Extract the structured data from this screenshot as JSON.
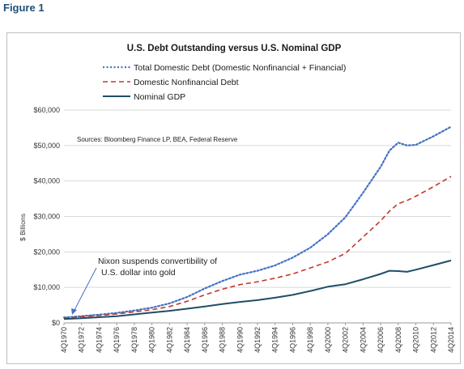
{
  "figure_label": "Figure 1",
  "chart_data": {
    "type": "line",
    "title": "U.S. Debt Outstanding versus U.S. Nominal GDP",
    "ylabel": "$ Billions",
    "xlabel": "",
    "ylim": [
      0,
      60000
    ],
    "yticks": [
      "$0",
      "$10,000",
      "$20,000",
      "$30,000",
      "$40,000",
      "$50,000",
      "$60,000"
    ],
    "x": [
      1970,
      1972,
      1974,
      1976,
      1978,
      1980,
      1982,
      1984,
      1986,
      1988,
      1990,
      1992,
      1994,
      1996,
      1998,
      2000,
      2002,
      2004,
      2006,
      2007,
      2008,
      2009,
      2010,
      2012,
      2014
    ],
    "xtick_labels": [
      "4Q1970",
      "4Q1972",
      "4Q1974",
      "4Q1976",
      "4Q1978",
      "4Q1980",
      "4Q1982",
      "4Q1984",
      "4Q1986",
      "4Q1988",
      "4Q1990",
      "4Q1992",
      "4Q1994",
      "4Q1996",
      "4Q1998",
      "4Q2000",
      "4Q2002",
      "4Q2004",
      "4Q2006",
      "4Q2008",
      "4Q2010",
      "4Q2012",
      "4Q2014"
    ],
    "series": [
      {
        "name": "Total Domestic  Debt (Domestic Nonfinancial + Financial)",
        "color": "#4472c4",
        "style": "dotted",
        "values": [
          1500,
          1900,
          2300,
          2800,
          3500,
          4300,
          5500,
          7300,
          9700,
          11800,
          13600,
          14700,
          16200,
          18400,
          21200,
          25000,
          29800,
          36700,
          44000,
          48600,
          50800,
          50000,
          50200,
          52600,
          55300
        ]
      },
      {
        "name": "Domestic Nonfinancial Debt",
        "color": "#c0392b",
        "style": "dashed",
        "values": [
          1400,
          1700,
          2100,
          2500,
          3100,
          3700,
          4600,
          6100,
          7900,
          9500,
          10800,
          11600,
          12600,
          13800,
          15500,
          17200,
          19600,
          24200,
          28800,
          31500,
          33600,
          34500,
          35700,
          38400,
          41300
        ]
      },
      {
        "name": "Nominal GDP",
        "color": "#1f4e66",
        "style": "solid",
        "values": [
          1100,
          1300,
          1600,
          1900,
          2400,
          2900,
          3400,
          4000,
          4600,
          5300,
          5900,
          6400,
          7100,
          7900,
          9000,
          10200,
          10900,
          12300,
          13800,
          14700,
          14600,
          14400,
          15000,
          16300,
          17600
        ]
      }
    ],
    "legend_position": "top-center",
    "grid": "horizontal",
    "annotations": [
      {
        "text": "Sources: Bloomberg Finance LP, BEA, Federal Reserve"
      },
      {
        "text_lines": [
          "Nixon suspends convertibility of",
          "U.S. dollar into gold"
        ],
        "points_to_x": 1971
      }
    ]
  }
}
